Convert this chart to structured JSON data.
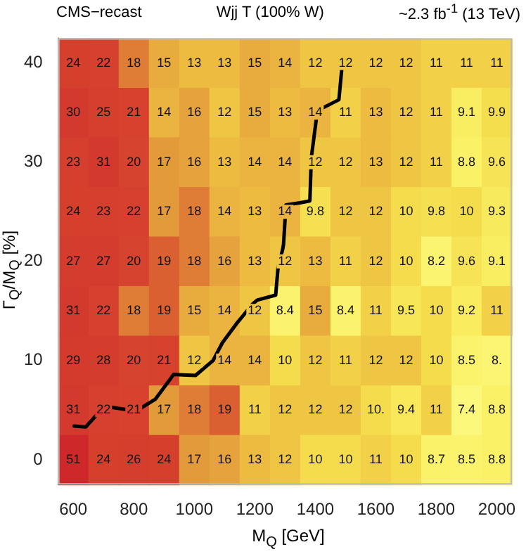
{
  "chart_data": {
    "type": "heatmap",
    "title": "Wjj T (100% W)",
    "annotations": [
      "CMS−recast",
      "~2.3 fb$^{-1}$ (13 TeV)"
    ],
    "xlabel": "M$_{Q}$ [GeV]",
    "ylabel": "Γ$_{Q}$/M$_{Q}$ [%]",
    "x": [
      600,
      700,
      800,
      900,
      1000,
      1100,
      1200,
      1300,
      1400,
      1500,
      1600,
      1700,
      1800,
      1900,
      2000
    ],
    "y": [
      40,
      35,
      30,
      25,
      20,
      15,
      10,
      5,
      0
    ],
    "cells": [
      [
        24,
        22,
        18,
        15,
        13,
        13,
        15,
        14,
        12,
        12,
        12,
        12,
        11,
        11,
        11
      ],
      [
        30,
        25,
        21,
        14,
        16,
        12,
        15,
        13,
        14,
        11,
        13,
        12,
        11,
        9.1,
        9.9
      ],
      [
        23,
        31,
        20,
        17,
        16,
        13,
        14,
        14,
        12,
        12,
        13,
        12,
        11,
        8.8,
        9.6
      ],
      [
        24,
        23,
        22,
        17,
        18,
        14,
        13,
        14,
        9.8,
        12,
        12,
        10,
        9.8,
        10,
        9.3
      ],
      [
        27,
        27,
        20,
        19,
        18,
        16,
        13,
        12,
        13,
        11,
        12,
        10,
        8.2,
        9.6,
        9.1
      ],
      [
        31,
        22,
        18,
        19,
        15,
        14,
        12,
        8.4,
        15,
        8.4,
        11,
        9.5,
        10,
        9.2,
        11
      ],
      [
        29,
        28,
        20,
        21,
        12,
        14,
        14,
        10,
        12,
        11,
        12,
        12,
        10,
        8.5,
        8
      ],
      [
        31,
        22,
        21,
        17,
        18,
        19,
        11,
        12,
        12,
        12,
        10,
        9.4,
        11,
        7.4,
        8.8
      ],
      [
        51,
        24,
        26,
        24,
        17,
        16,
        13,
        12,
        10,
        10,
        11,
        10,
        8.7,
        8.5,
        8.8
      ]
    ],
    "cell_labels": [
      [
        "24",
        "22",
        "18",
        "15",
        "13",
        "13",
        "15",
        "14",
        "12",
        "12",
        "12",
        "12",
        "11",
        "11",
        "11"
      ],
      [
        "30",
        "25",
        "21",
        "14",
        "16",
        "12",
        "15",
        "13",
        "14",
        "11",
        "13",
        "12",
        "11",
        "9.1",
        "9.9"
      ],
      [
        "23",
        "31",
        "20",
        "17",
        "16",
        "13",
        "14",
        "14",
        "12",
        "12",
        "13",
        "12",
        "11",
        "8.8",
        "9.6"
      ],
      [
        "24",
        "23",
        "22",
        "17",
        "18",
        "14",
        "13",
        "14",
        "9.8",
        "12",
        "12",
        "10",
        "9.8",
        "10",
        "9.3"
      ],
      [
        "27",
        "27",
        "20",
        "19",
        "18",
        "16",
        "13",
        "12",
        "13",
        "11",
        "12",
        "10",
        "8.2",
        "9.6",
        "9.1"
      ],
      [
        "31",
        "22",
        "18",
        "19",
        "15",
        "14",
        "12",
        "8.4",
        "15",
        "8.4",
        "11",
        "9.5",
        "10",
        "9.2",
        "11"
      ],
      [
        "29",
        "28",
        "20",
        "21",
        "12",
        "14",
        "14",
        "10",
        "12",
        "11",
        "12",
        "12",
        "10",
        "8.5",
        "8."
      ],
      [
        "31",
        "22",
        "21",
        "17",
        "18",
        "19",
        "11",
        "12",
        "12",
        "12",
        "10.",
        "9.4",
        "11",
        "7.4",
        "8.8"
      ],
      [
        "51",
        "24",
        "26",
        "24",
        "17",
        "16",
        "13",
        "12",
        "10",
        "10",
        "11",
        "10",
        "8.7",
        "8.5",
        "8.8"
      ]
    ],
    "series": [
      {
        "type": "line",
        "color": "#000000",
        "x": [
          603,
          641,
          703,
          807,
          871,
          932,
          1004,
          1062,
          1093,
          1139,
          1193,
          1208,
          1269,
          1277,
          1292,
          1295,
          1303,
          1349,
          1382,
          1387,
          1407,
          1478,
          1490
        ],
        "values": [
          3.4,
          3.3,
          5.4,
          4.9,
          6.1,
          8.6,
          8.5,
          10,
          11.8,
          13.7,
          15.7,
          16.1,
          16.6,
          19.4,
          21.2,
          21.7,
          25.7,
          25.9,
          26.1,
          30.5,
          35.2,
          36.3,
          40.2
        ]
      }
    ],
    "xlim": [
      550,
      2050
    ],
    "ylim": [
      -2.5,
      42.5
    ],
    "xticks": [
      600,
      800,
      1000,
      1200,
      1400,
      1600,
      1800,
      2000
    ],
    "yticks": [
      0,
      10,
      20,
      30,
      40
    ]
  }
}
